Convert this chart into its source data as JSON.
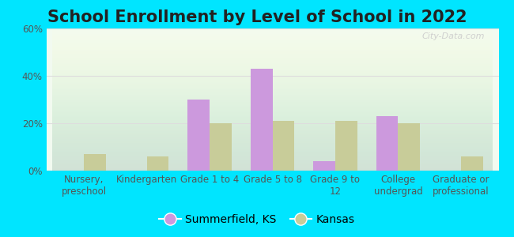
{
  "title": "School Enrollment by Level of School in 2022",
  "categories": [
    "Nursery,\npreschool",
    "Kindergarten",
    "Grade 1 to 4",
    "Grade 5 to 8",
    "Grade 9 to\n12",
    "College\nundergrad",
    "Graduate or\nprofessional"
  ],
  "summerfield_values": [
    0,
    0,
    30,
    43,
    4,
    23,
    0
  ],
  "kansas_values": [
    7,
    6,
    20,
    21,
    21,
    20,
    6
  ],
  "summerfield_color": "#cc99dd",
  "kansas_color": "#c8cc99",
  "background_outer": "#00e5ff",
  "background_inner": "#f2faf0",
  "ylim": [
    0,
    60
  ],
  "yticks": [
    0,
    20,
    40,
    60
  ],
  "ytick_labels": [
    "0%",
    "20%",
    "40%",
    "60%"
  ],
  "legend_labels": [
    "Summerfield, KS",
    "Kansas"
  ],
  "watermark": "City-Data.com",
  "title_fontsize": 15,
  "tick_fontsize": 8.5,
  "legend_fontsize": 10
}
